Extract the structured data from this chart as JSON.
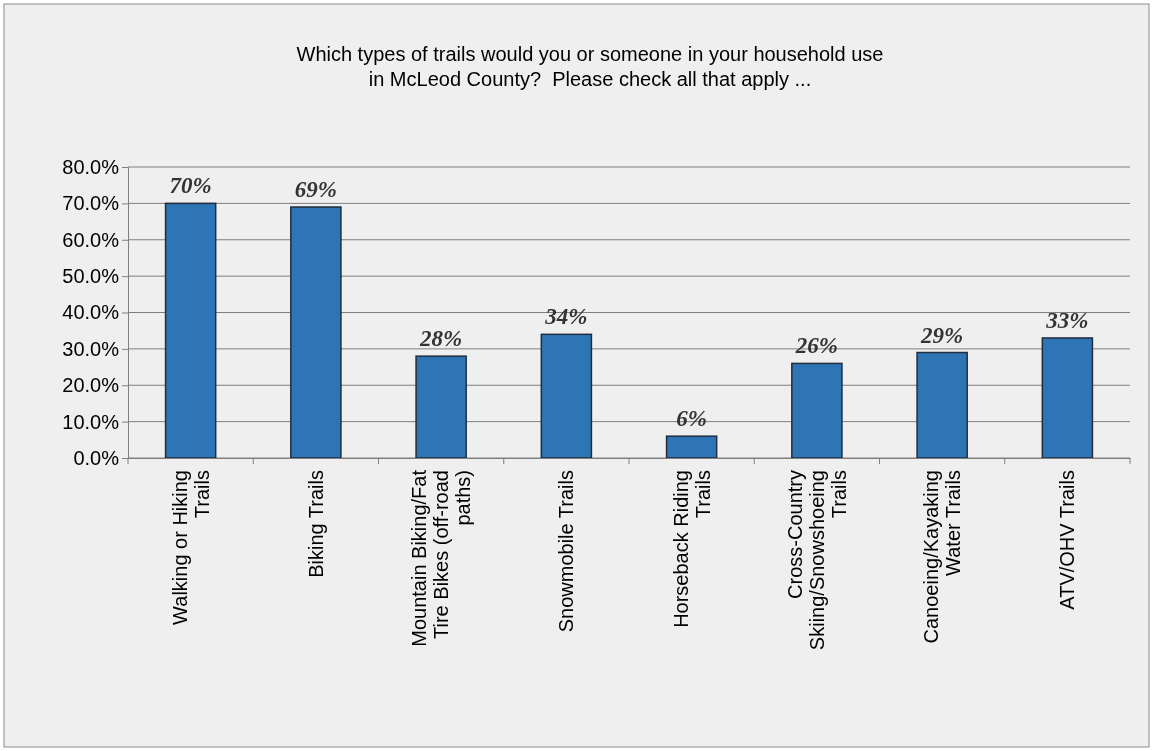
{
  "chart_data": {
    "type": "bar",
    "title": "Which types of trails would you or someone in your household use in McLeod County?  Please check all that apply ...",
    "categories": [
      "Walking or Hiking Trails",
      "Biking Trails",
      "Mountain Biking/Fat Tire Bikes (off-road paths)",
      "Snowmobile Trails",
      "Horseback Riding Trails",
      "Cross-Country Skiing/Snowshoeing Trails",
      "Canoeing/Kayaking Water Trails",
      "ATV/OHV Trails"
    ],
    "values": [
      70,
      69,
      28,
      34,
      6,
      26,
      29,
      33
    ],
    "value_labels": [
      "70%",
      "69%",
      "28%",
      "34%",
      "6%",
      "26%",
      "29%",
      "33%"
    ],
    "color": "#2e75b6",
    "ylim": [
      0,
      80
    ],
    "yticks": [
      {
        "value": 0,
        "label": "0.0%"
      },
      {
        "value": 10,
        "label": "10.0%"
      },
      {
        "value": 20,
        "label": "20.0%"
      },
      {
        "value": 30,
        "label": "30.0%"
      },
      {
        "value": 40,
        "label": "40.0%"
      },
      {
        "value": 50,
        "label": "50.0%"
      },
      {
        "value": 60,
        "label": "60.0%"
      },
      {
        "value": 70,
        "label": "70.0%"
      },
      {
        "value": 80,
        "label": "80.0%"
      }
    ],
    "grid": "y"
  }
}
